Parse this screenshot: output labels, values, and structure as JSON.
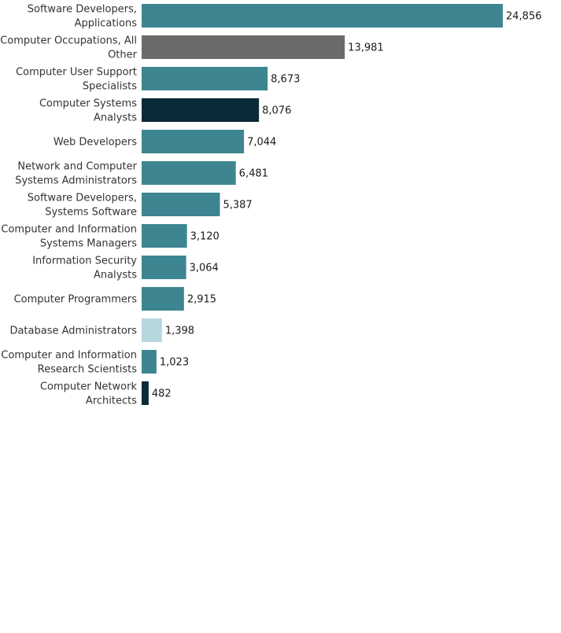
{
  "chart_data": {
    "type": "bar",
    "orientation": "horizontal",
    "categories": [
      [
        "Software Developers,",
        "Applications"
      ],
      [
        "Computer Occupations, All",
        "Other"
      ],
      [
        "Computer User Support",
        "Specialists"
      ],
      [
        "Computer Systems",
        "Analysts"
      ],
      [
        "Web Developers"
      ],
      [
        "Network and Computer",
        "Systems Administrators"
      ],
      [
        "Software Developers,",
        "Systems Software"
      ],
      [
        "Computer and Information",
        "Systems Managers"
      ],
      [
        "Information Security",
        "Analysts"
      ],
      [
        "Computer Programmers"
      ],
      [
        "Database Administrators"
      ],
      [
        "Computer and Information",
        "Research Scientists"
      ],
      [
        "Computer Network",
        "Architects"
      ]
    ],
    "values": [
      24856,
      13981,
      8673,
      8076,
      7044,
      6481,
      5387,
      3120,
      3064,
      2915,
      1398,
      1023,
      482
    ],
    "value_labels": [
      "24,856",
      "13,981",
      "8,673",
      "8,076",
      "7,044",
      "6,481",
      "5,387",
      "3,120",
      "3,064",
      "2,915",
      "1,398",
      "1,023",
      "482"
    ],
    "bar_colors": [
      "#3d8591",
      "#6b6b6b",
      "#3d8591",
      "#0b2a38",
      "#3d8591",
      "#3d8591",
      "#3d8591",
      "#3d8591",
      "#3d8591",
      "#3d8591",
      "#b5d8df",
      "#3d8591",
      "#0b2a38"
    ],
    "xlim": [
      0,
      24856
    ],
    "grid": false,
    "legend": "none"
  }
}
